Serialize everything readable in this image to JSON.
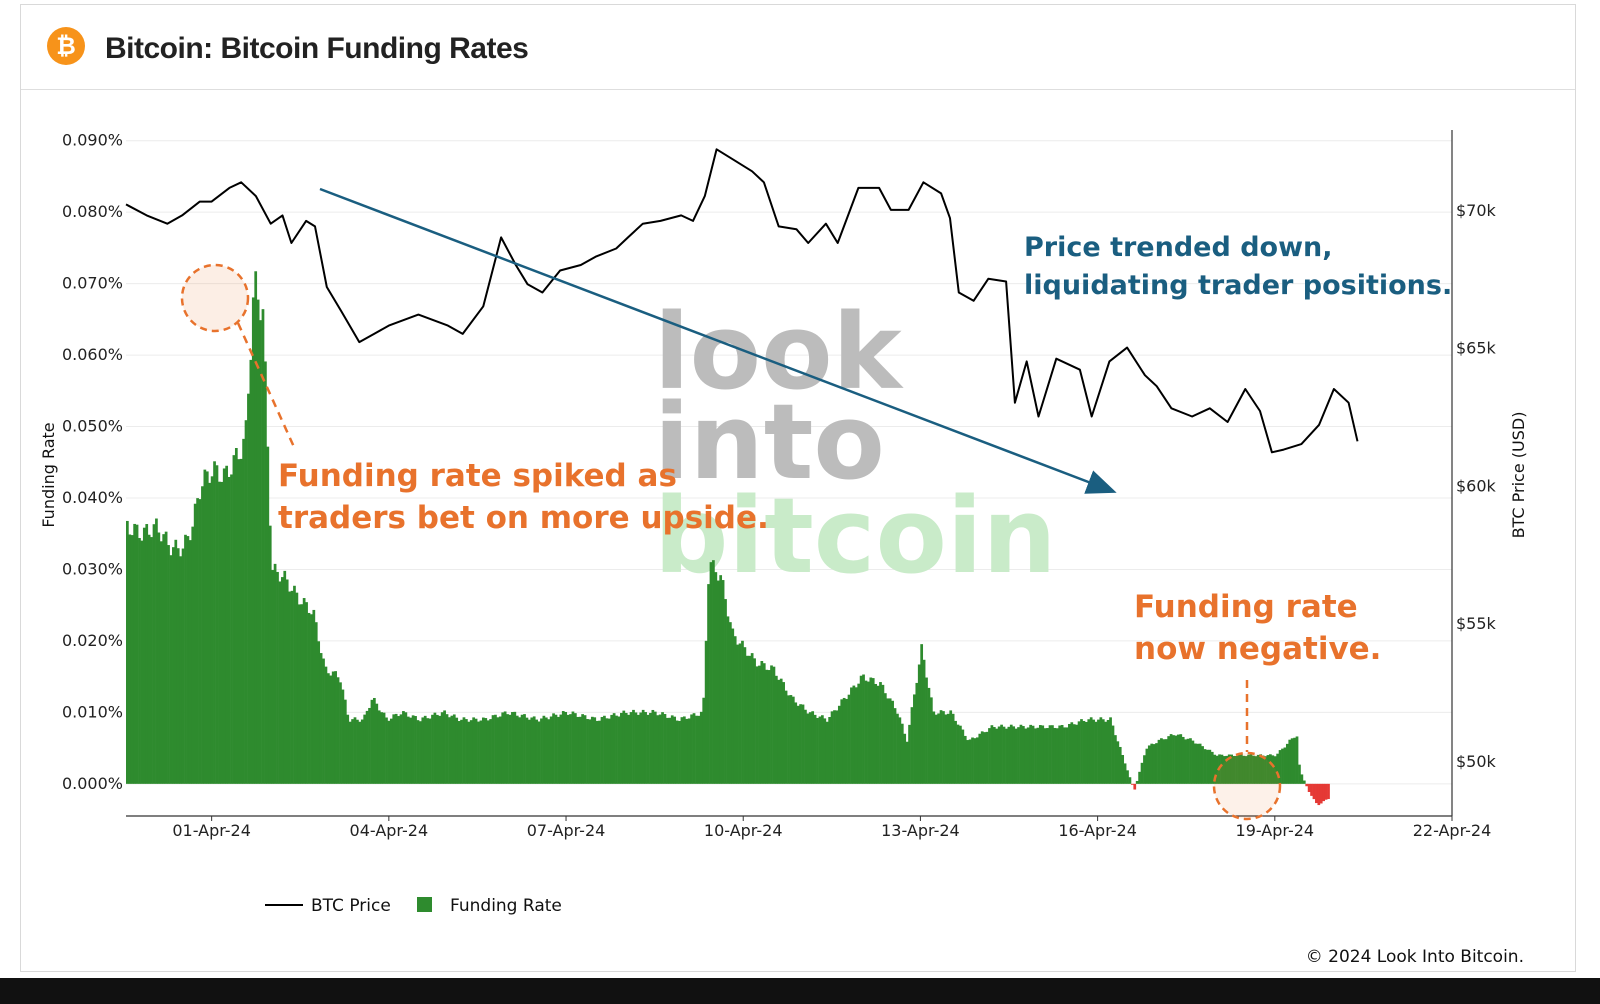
{
  "header": {
    "logo_glyph": "₿",
    "logo_icon": "bitcoin-icon",
    "title": "Bitcoin: Bitcoin Funding Rates"
  },
  "watermark": {
    "line1": "look",
    "line2": "into",
    "line3": "bitcoin"
  },
  "copyright": "© 2024 Look Into Bitcoin.",
  "annotations": {
    "spike": [
      "Funding rate spiked as",
      "traders bet on more upside."
    ],
    "price": [
      "Price trended down,",
      "liquidating trader positions."
    ],
    "negative": [
      "Funding rate",
      "now negative."
    ]
  },
  "colors": {
    "funding_positive": "#2e8b2e",
    "funding_negative": "#e53935",
    "price_line": "#000000",
    "annotation_orange": "#e8722c",
    "annotation_blue": "#1a5e80"
  },
  "chart_data": {
    "type": "bar+line",
    "x_ticks": [
      "01-Apr-24",
      "04-Apr-24",
      "07-Apr-24",
      "10-Apr-24",
      "13-Apr-24",
      "16-Apr-24",
      "19-Apr-24",
      "22-Apr-24"
    ],
    "x_range_days": [
      -1.45,
      21.0
    ],
    "y_left": {
      "label": "Funding Rate",
      "ticks": [
        "0.000%",
        "0.010%",
        "0.020%",
        "0.030%",
        "0.040%",
        "0.050%",
        "0.060%",
        "0.070%",
        "0.080%",
        "0.090%"
      ],
      "range": [
        -0.0045,
        0.0915
      ]
    },
    "y_right": {
      "label": "BTC Price (USD)",
      "ticks": [
        "$50k",
        "$55k",
        "$60k",
        "$65k",
        "$70k"
      ],
      "range": [
        48000,
        72900
      ]
    },
    "legend": [
      {
        "name": "BTC Price",
        "marker": "line"
      },
      {
        "name": "Funding Rate",
        "marker": "square"
      }
    ],
    "series": [
      {
        "name": "Funding Rate",
        "axis": "left",
        "unit": "%",
        "points": [
          [
            -1.45,
            0.036
          ],
          [
            -1.2,
            0.035
          ],
          [
            -0.95,
            0.036
          ],
          [
            -0.7,
            0.033
          ],
          [
            -0.5,
            0.033
          ],
          [
            -0.35,
            0.036
          ],
          [
            -0.2,
            0.042
          ],
          [
            0,
            0.044
          ],
          [
            0.2,
            0.043
          ],
          [
            0.35,
            0.045
          ],
          [
            0.55,
            0.048
          ],
          [
            0.7,
            0.07
          ],
          [
            0.85,
            0.066
          ],
          [
            1.0,
            0.03
          ],
          [
            1.2,
            0.029
          ],
          [
            1.45,
            0.026
          ],
          [
            1.7,
            0.024
          ],
          [
            1.9,
            0.016
          ],
          [
            2.15,
            0.015
          ],
          [
            2.3,
            0.009
          ],
          [
            2.55,
            0.009
          ],
          [
            2.7,
            0.012
          ],
          [
            2.95,
            0.009
          ],
          [
            3.2,
            0.01
          ],
          [
            3.5,
            0.009
          ],
          [
            3.9,
            0.01
          ],
          [
            4.2,
            0.009
          ],
          [
            4.6,
            0.009
          ],
          [
            5.0,
            0.01
          ],
          [
            5.5,
            0.009
          ],
          [
            6.0,
            0.01
          ],
          [
            6.5,
            0.009
          ],
          [
            7.0,
            0.01
          ],
          [
            7.5,
            0.01
          ],
          [
            7.9,
            0.009
          ],
          [
            8.3,
            0.01
          ],
          [
            8.4,
            0.031
          ],
          [
            8.6,
            0.029
          ],
          [
            8.8,
            0.021
          ],
          [
            9.0,
            0.019
          ],
          [
            9.2,
            0.017
          ],
          [
            9.5,
            0.016
          ],
          [
            9.8,
            0.012
          ],
          [
            10.1,
            0.01
          ],
          [
            10.4,
            0.009
          ],
          [
            10.7,
            0.012
          ],
          [
            11.0,
            0.015
          ],
          [
            11.3,
            0.014
          ],
          [
            11.6,
            0.01
          ],
          [
            11.75,
            0.006
          ],
          [
            12.0,
            0.019
          ],
          [
            12.2,
            0.01
          ],
          [
            12.5,
            0.01
          ],
          [
            12.8,
            0.006
          ],
          [
            13.2,
            0.008
          ],
          [
            13.6,
            0.008
          ],
          [
            14.0,
            0.008
          ],
          [
            14.4,
            0.008
          ],
          [
            14.8,
            0.009
          ],
          [
            15.2,
            0.009
          ],
          [
            15.6,
            -0.001
          ],
          [
            15.8,
            0.005
          ],
          [
            16.0,
            0.006
          ],
          [
            16.3,
            0.007
          ],
          [
            16.6,
            0.006
          ],
          [
            17.0,
            0.004
          ],
          [
            17.5,
            0.004
          ],
          [
            18.0,
            0.004
          ],
          [
            18.35,
            0.007
          ],
          [
            18.4,
            0.002
          ],
          [
            18.55,
            -0.001
          ],
          [
            18.7,
            -0.003
          ],
          [
            18.9,
            -0.002
          ]
        ]
      },
      {
        "name": "BTC Price",
        "axis": "right",
        "unit": "USD",
        "points": [
          [
            -1.45,
            70200
          ],
          [
            -1.1,
            69800
          ],
          [
            -0.75,
            69500
          ],
          [
            -0.5,
            69800
          ],
          [
            -0.2,
            70300
          ],
          [
            0.0,
            70300
          ],
          [
            0.3,
            70800
          ],
          [
            0.5,
            71000
          ],
          [
            0.75,
            70500
          ],
          [
            1.0,
            69500
          ],
          [
            1.2,
            69800
          ],
          [
            1.35,
            68800
          ],
          [
            1.6,
            69600
          ],
          [
            1.75,
            69400
          ],
          [
            1.95,
            67200
          ],
          [
            2.2,
            66300
          ],
          [
            2.5,
            65200
          ],
          [
            2.75,
            65500
          ],
          [
            3.0,
            65800
          ],
          [
            3.5,
            66200
          ],
          [
            4.0,
            65800
          ],
          [
            4.25,
            65500
          ],
          [
            4.6,
            66500
          ],
          [
            4.9,
            69000
          ],
          [
            5.15,
            68000
          ],
          [
            5.35,
            67300
          ],
          [
            5.6,
            67000
          ],
          [
            5.9,
            67800
          ],
          [
            6.25,
            68000
          ],
          [
            6.5,
            68300
          ],
          [
            6.85,
            68600
          ],
          [
            7.05,
            69000
          ],
          [
            7.3,
            69500
          ],
          [
            7.6,
            69600
          ],
          [
            7.95,
            69800
          ],
          [
            8.15,
            69600
          ],
          [
            8.35,
            70500
          ],
          [
            8.55,
            72200
          ],
          [
            8.85,
            71800
          ],
          [
            9.15,
            71400
          ],
          [
            9.35,
            71000
          ],
          [
            9.6,
            69400
          ],
          [
            9.9,
            69300
          ],
          [
            10.1,
            68800
          ],
          [
            10.4,
            69500
          ],
          [
            10.6,
            68800
          ],
          [
            10.95,
            70800
          ],
          [
            11.3,
            70800
          ],
          [
            11.5,
            70000
          ],
          [
            11.8,
            70000
          ],
          [
            12.05,
            71000
          ],
          [
            12.35,
            70600
          ],
          [
            12.5,
            69700
          ],
          [
            12.65,
            67000
          ],
          [
            12.9,
            66700
          ],
          [
            13.15,
            67500
          ],
          [
            13.45,
            67400
          ],
          [
            13.6,
            63000
          ],
          [
            13.8,
            64500
          ],
          [
            14.0,
            62500
          ],
          [
            14.3,
            64600
          ],
          [
            14.7,
            64200
          ],
          [
            14.9,
            62500
          ],
          [
            15.2,
            64500
          ],
          [
            15.5,
            65000
          ],
          [
            15.8,
            64000
          ],
          [
            16.0,
            63600
          ],
          [
            16.25,
            62800
          ],
          [
            16.6,
            62500
          ],
          [
            16.9,
            62800
          ],
          [
            17.2,
            62300
          ],
          [
            17.5,
            63500
          ],
          [
            17.75,
            62700
          ],
          [
            17.95,
            61200
          ],
          [
            18.15,
            61300
          ],
          [
            18.45,
            61500
          ],
          [
            18.75,
            62200
          ],
          [
            19.0,
            63500
          ],
          [
            19.25,
            63000
          ],
          [
            19.4,
            61600
          ]
        ]
      }
    ]
  }
}
